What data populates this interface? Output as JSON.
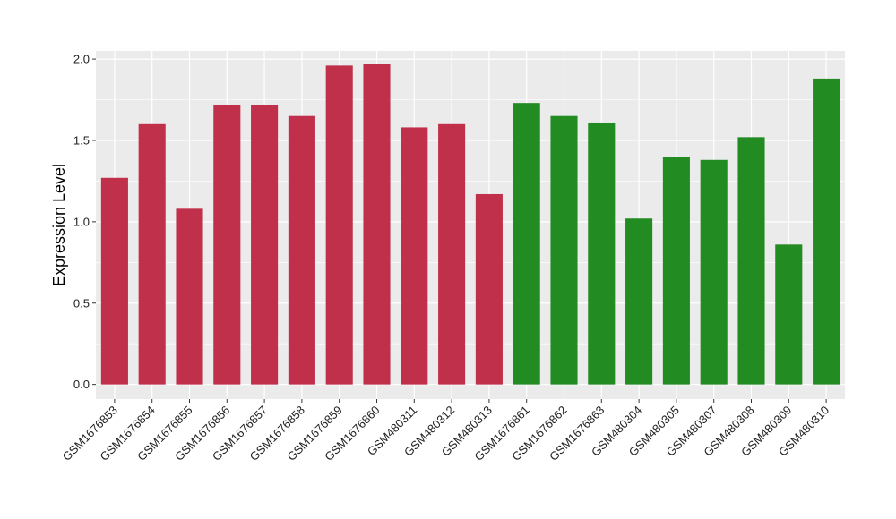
{
  "chart_data": {
    "type": "bar",
    "title": "",
    "xlabel": "",
    "ylabel": "Expression Level",
    "ylim": [
      -0.09,
      2.05
    ],
    "yticks": [
      0.0,
      0.5,
      1.0,
      1.5,
      2.0
    ],
    "ytick_labels": [
      "0.0",
      "0.5",
      "1.0",
      "1.5",
      "2.0"
    ],
    "grid": true,
    "legend": "none",
    "panel_background": "#ebebeb",
    "grid_color": "#ffffff",
    "categories": [
      "GSM1676853",
      "GSM1676854",
      "GSM1676855",
      "GSM1676856",
      "GSM1676857",
      "GSM1676858",
      "GSM1676859",
      "GSM1676860",
      "GSM480311",
      "GSM480312",
      "GSM480313",
      "GSM1676861",
      "GSM1676862",
      "GSM1676863",
      "GSM480304",
      "GSM480305",
      "GSM480307",
      "GSM480308",
      "GSM480309",
      "GSM480310"
    ],
    "values": [
      1.27,
      1.6,
      1.08,
      1.72,
      1.72,
      1.65,
      1.96,
      1.97,
      1.58,
      1.6,
      1.17,
      1.73,
      1.65,
      1.61,
      1.02,
      1.4,
      1.38,
      1.52,
      0.86,
      1.88
    ],
    "bar_colors": [
      "#c1304a",
      "#c1304a",
      "#c1304a",
      "#c1304a",
      "#c1304a",
      "#c1304a",
      "#c1304a",
      "#c1304a",
      "#c1304a",
      "#c1304a",
      "#c1304a",
      "#228b22",
      "#228b22",
      "#228b22",
      "#228b22",
      "#228b22",
      "#228b22",
      "#228b22",
      "#228b22",
      "#228b22"
    ]
  }
}
